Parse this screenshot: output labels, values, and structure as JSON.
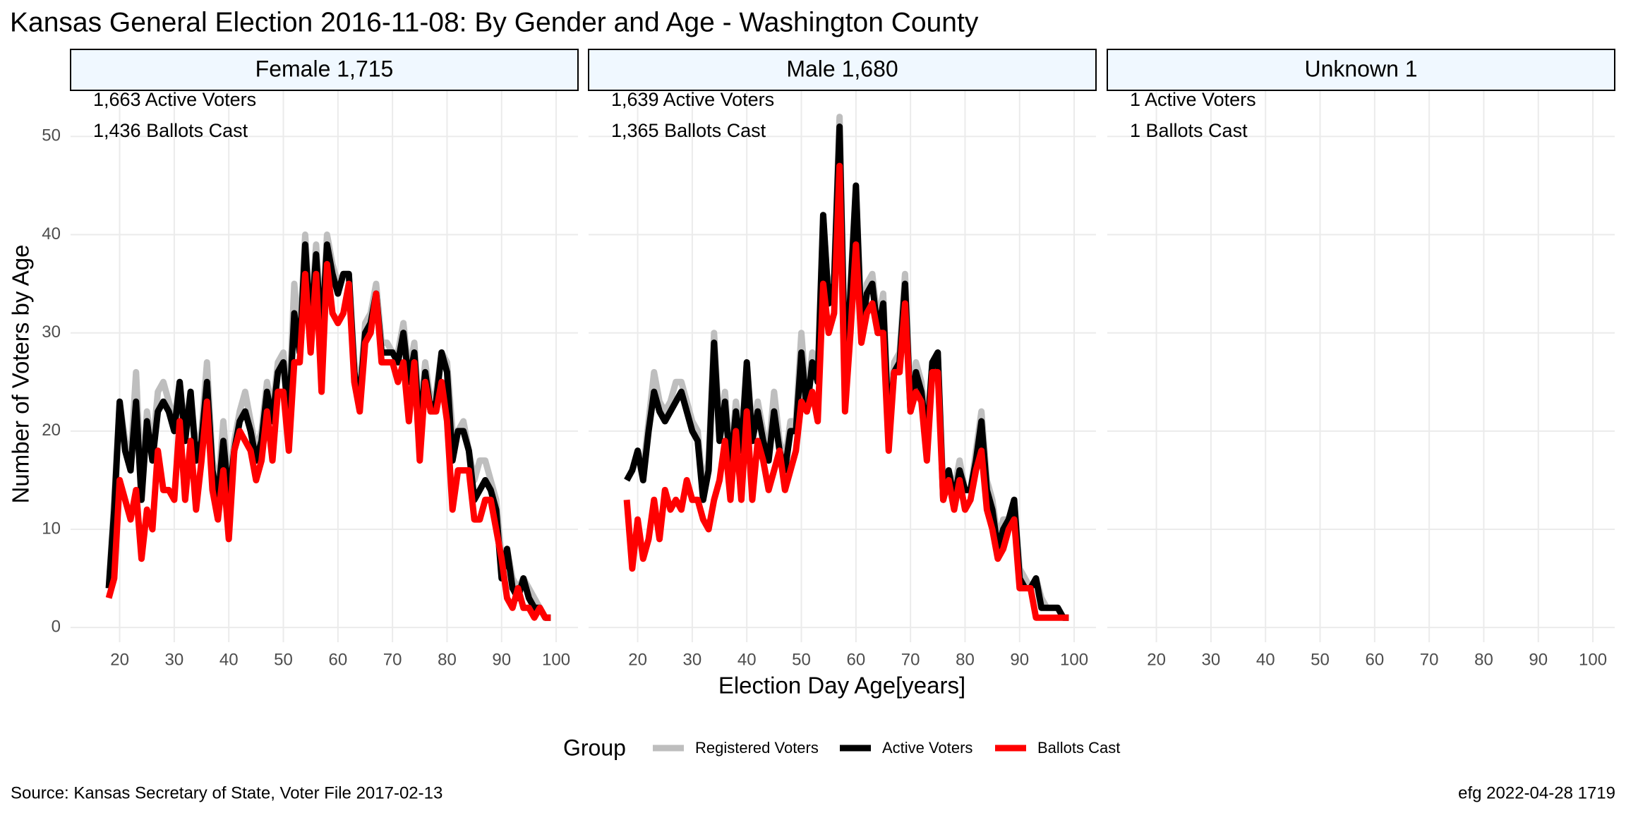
{
  "chart_data": {
    "type": "line",
    "title": "Kansas General Election 2016-11-08:  By Gender and Age - Washington County",
    "x_label": "Election Day Age[years]",
    "y_label": "Number of Voters by Age",
    "legend_title": "Group",
    "caption": "Source:  Kansas Secretary of State, Voter File  2017-02-13",
    "credit": "efg 2022-04-28 1719",
    "xlim": [
      11,
      104
    ],
    "ylim": [
      -1.5,
      54.7
    ],
    "xticks": [
      20,
      30,
      40,
      50,
      60,
      70,
      80,
      90,
      100
    ],
    "yticks": [
      0,
      10,
      20,
      30,
      40,
      50
    ],
    "grid": true,
    "panels": [
      {
        "title": "Female 1,715",
        "annotations": [
          "1,663 Active Voters",
          "1,436 Ballots Cast"
        ],
        "x": [
          18,
          19,
          20,
          21,
          22,
          23,
          24,
          25,
          26,
          27,
          28,
          29,
          30,
          31,
          32,
          33,
          34,
          35,
          36,
          37,
          38,
          39,
          40,
          41,
          42,
          43,
          44,
          45,
          46,
          47,
          48,
          49,
          50,
          51,
          52,
          53,
          54,
          55,
          56,
          57,
          58,
          59,
          60,
          61,
          62,
          63,
          64,
          65,
          66,
          67,
          68,
          69,
          70,
          71,
          72,
          73,
          74,
          75,
          76,
          77,
          78,
          79,
          80,
          81,
          82,
          83,
          84,
          85,
          86,
          87,
          88,
          89,
          90,
          91,
          92,
          93,
          94,
          95,
          96,
          97,
          98,
          99
        ],
        "series": [
          {
            "name": "Registered Voters",
            "color": "#bebebe",
            "values": [
              4,
              13,
              23,
              19,
              17,
              26,
              14,
              22,
              18,
              24,
              25,
              23,
              21,
              25,
              20,
              24,
              18,
              20,
              27,
              17,
              14,
              21,
              14,
              19,
              22,
              24,
              21,
              18,
              20,
              25,
              22,
              27,
              28,
              22,
              35,
              29,
              40,
              31,
              39,
              30,
              40,
              37,
              35,
              36,
              36,
              27,
              24,
              31,
              32,
              35,
              29,
              29,
              28,
              28,
              31,
              26,
              29,
              21,
              27,
              23,
              24,
              28,
              27,
              20,
              20,
              21,
              18,
              15,
              17,
              17,
              15,
              13,
              7,
              8,
              5,
              4,
              5,
              4,
              3,
              2,
              1,
              1
            ]
          },
          {
            "name": "Active Voters",
            "color": "#000000",
            "values": [
              4,
              12,
              23,
              18,
              16,
              23,
              13,
              21,
              17,
              22,
              23,
              22,
              20,
              25,
              19,
              24,
              17,
              19,
              25,
              16,
              13,
              19,
              13,
              18,
              21,
              22,
              20,
              17,
              19,
              24,
              21,
              26,
              27,
              21,
              32,
              28,
              39,
              30,
              38,
              29,
              39,
              36,
              34,
              36,
              36,
              26,
              23,
              30,
              31,
              34,
              28,
              28,
              28,
              27,
              30,
              25,
              28,
              20,
              26,
              22,
              23,
              28,
              26,
              17,
              20,
              20,
              18,
              13,
              14,
              15,
              14,
              12,
              5,
              8,
              4,
              3,
              5,
              3,
              2,
              2,
              1,
              1
            ]
          },
          {
            "name": "Ballots Cast",
            "color": "#ff0000",
            "values": [
              3,
              5,
              15,
              13,
              11,
              14,
              7,
              12,
              10,
              18,
              14,
              14,
              13,
              21,
              13,
              19,
              12,
              17,
              23,
              14,
              11,
              16,
              9,
              18,
              20,
              19,
              18,
              15,
              17,
              22,
              17,
              24,
              24,
              18,
              27,
              27,
              36,
              28,
              36,
              24,
              37,
              32,
              31,
              32,
              35,
              25,
              22,
              29,
              30,
              34,
              27,
              27,
              27,
              25,
              27,
              21,
              27,
              17,
              25,
              22,
              22,
              25,
              21,
              12,
              16,
              16,
              16,
              11,
              11,
              13,
              13,
              10,
              7,
              3,
              2,
              4,
              2,
              2,
              1,
              2,
              1,
              1
            ]
          }
        ]
      },
      {
        "title": "Male 1,680",
        "annotations": [
          "1,639 Active Voters",
          "1,365 Ballots Cast"
        ],
        "x": [
          18,
          19,
          20,
          21,
          22,
          23,
          24,
          25,
          26,
          27,
          28,
          29,
          30,
          31,
          32,
          33,
          34,
          35,
          36,
          37,
          38,
          39,
          40,
          41,
          42,
          43,
          44,
          45,
          46,
          47,
          48,
          49,
          50,
          51,
          52,
          53,
          54,
          55,
          56,
          57,
          58,
          59,
          60,
          61,
          62,
          63,
          64,
          65,
          66,
          67,
          68,
          69,
          70,
          71,
          72,
          73,
          74,
          75,
          76,
          77,
          78,
          79,
          80,
          81,
          82,
          83,
          84,
          85,
          86,
          87,
          88,
          89,
          90,
          91,
          92,
          93,
          94,
          95,
          96,
          97,
          98,
          99
        ],
        "series": [
          {
            "name": "Registered Voters",
            "color": "#bebebe",
            "values": [
              15,
              16,
              18,
              16,
              21,
              26,
              23,
              22,
              23,
              25,
              25,
              23,
              21,
              20,
              14,
              17,
              30,
              20,
              24,
              17,
              23,
              19,
              27,
              20,
              23,
              20,
              18,
              24,
              19,
              17,
              21,
              21,
              30,
              23,
              28,
              26,
              42,
              33,
              36,
              52,
              27,
              35,
              45,
              31,
              35,
              36,
              31,
              34,
              21,
              27,
              28,
              36,
              23,
              27,
              25,
              20,
              27,
              28,
              14,
              16,
              14,
              17,
              14,
              14,
              18,
              22,
              15,
              13,
              9,
              11,
              11,
              13,
              6,
              5,
              4,
              5,
              3,
              2,
              2,
              2,
              1,
              1
            ]
          },
          {
            "name": "Active Voters",
            "color": "#000000",
            "values": [
              15,
              16,
              18,
              15,
              20,
              24,
              22,
              21,
              22,
              23,
              24,
              22,
              20,
              19,
              13,
              16,
              29,
              19,
              23,
              16,
              22,
              18,
              27,
              19,
              22,
              19,
              17,
              22,
              18,
              16,
              20,
              20,
              28,
              22,
              27,
              25,
              42,
              33,
              35,
              51,
              26,
              34,
              45,
              30,
              34,
              35,
              30,
              33,
              20,
              26,
              27,
              35,
              22,
              26,
              24,
              19,
              27,
              28,
              13,
              16,
              13,
              16,
              14,
              14,
              17,
              21,
              14,
              12,
              8,
              10,
              11,
              13,
              5,
              4,
              4,
              5,
              2,
              2,
              2,
              2,
              1,
              1
            ]
          },
          {
            "name": "Ballots Cast",
            "color": "#ff0000",
            "values": [
              13,
              6,
              11,
              7,
              9,
              13,
              9,
              14,
              12,
              13,
              12,
              15,
              13,
              13,
              11,
              10,
              13,
              15,
              19,
              13,
              20,
              13,
              22,
              13,
              19,
              17,
              14,
              16,
              18,
              14,
              16,
              18,
              23,
              22,
              24,
              21,
              35,
              30,
              32,
              47,
              22,
              30,
              39,
              29,
              32,
              33,
              30,
              30,
              18,
              26,
              26,
              33,
              22,
              24,
              23,
              17,
              26,
              26,
              13,
              15,
              12,
              15,
              12,
              13,
              16,
              18,
              12,
              10,
              7,
              8,
              10,
              11,
              4,
              4,
              4,
              1,
              1,
              1,
              1,
              1,
              1,
              1
            ]
          }
        ]
      },
      {
        "title": "Unknown 1",
        "annotations": [
          "1 Active Voters",
          "1 Ballots Cast"
        ]
      }
    ]
  }
}
